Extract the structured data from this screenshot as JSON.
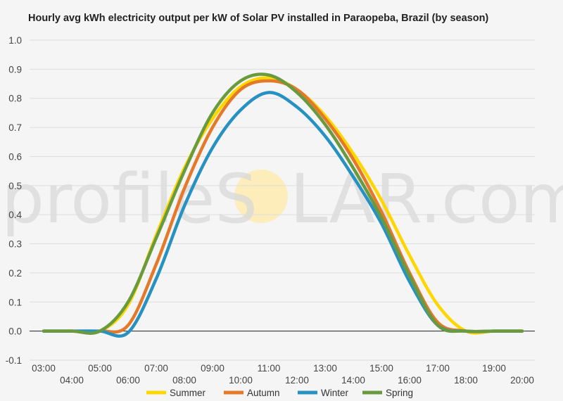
{
  "watermark": {
    "left": "profileS",
    "right": "LAR.com",
    "sun_color": "#fde9a6"
  },
  "chart_data": {
    "type": "line",
    "title": "Hourly avg kWh electricity output per kW of Solar PV installed in Paraopeba, Brazil (by season)",
    "xlabel": "",
    "ylabel": "",
    "x": [
      "03:00",
      "04:00",
      "05:00",
      "06:00",
      "07:00",
      "08:00",
      "09:00",
      "10:00",
      "11:00",
      "12:00",
      "13:00",
      "14:00",
      "15:00",
      "16:00",
      "17:00",
      "18:00",
      "19:00",
      "20:00"
    ],
    "ylim": [
      -0.1,
      1.0
    ],
    "yticks": [
      "1.0",
      "0.9",
      "0.8",
      "0.7",
      "0.6",
      "0.5",
      "0.4",
      "0.3",
      "0.2",
      "0.1",
      "0.0",
      "-0.1"
    ],
    "grid": true,
    "legend_position": "bottom",
    "series": [
      {
        "name": "Summer",
        "color": "#ffd700",
        "values": [
          0.0,
          0.0,
          0.0,
          0.09,
          0.33,
          0.56,
          0.73,
          0.84,
          0.87,
          0.83,
          0.74,
          0.61,
          0.45,
          0.26,
          0.09,
          0.0,
          0.0,
          0.0
        ]
      },
      {
        "name": "Autumn",
        "color": "#e5792a",
        "values": [
          0.0,
          0.0,
          0.0,
          0.02,
          0.23,
          0.49,
          0.7,
          0.83,
          0.86,
          0.83,
          0.73,
          0.59,
          0.41,
          0.2,
          0.03,
          0.0,
          0.0,
          0.0
        ]
      },
      {
        "name": "Winter",
        "color": "#2791c2",
        "values": [
          0.0,
          0.0,
          0.0,
          -0.005,
          0.18,
          0.43,
          0.63,
          0.76,
          0.82,
          0.77,
          0.67,
          0.53,
          0.37,
          0.17,
          0.02,
          0.0,
          0.0,
          0.0
        ]
      },
      {
        "name": "Spring",
        "color": "#6a9a3f",
        "values": [
          0.0,
          0.0,
          0.0,
          0.1,
          0.32,
          0.55,
          0.75,
          0.86,
          0.88,
          0.82,
          0.71,
          0.56,
          0.39,
          0.19,
          0.02,
          0.0,
          0.0,
          0.0
        ]
      }
    ]
  }
}
